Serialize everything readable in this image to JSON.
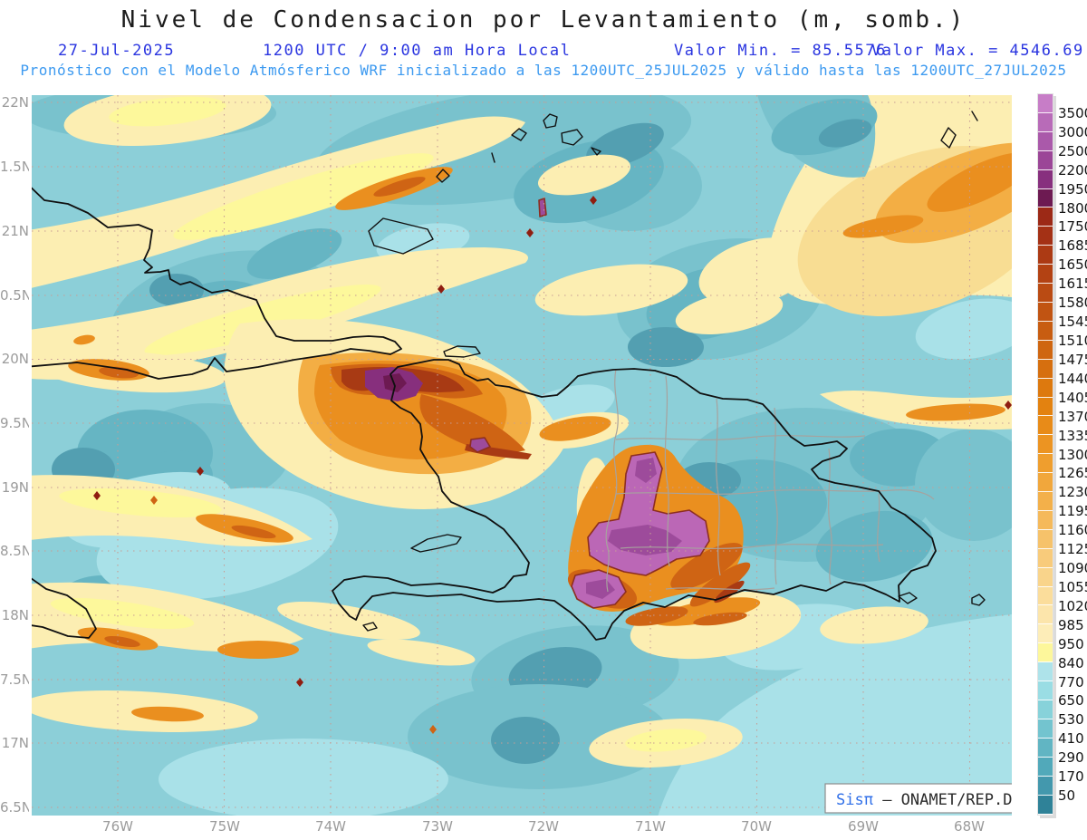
{
  "header": {
    "title": "Nivel de Condensacion por Levantamiento (m, somb.)",
    "date": "27-Jul-2025",
    "time": "1200 UTC / 9:00 am Hora Local",
    "valor_min": "Valor Min. = 85.5576",
    "valor_max": "Valor Max. = 4546.69",
    "forecast": "Pronóstico con el Modelo Atmósferico WRF inicializado a las 1200UTC_25JUL2025 y válido hasta las  1200UTC_27JUL2025"
  },
  "axes": {
    "lat_labels": [
      "22N",
      "1.5N",
      "21N",
      "0.5N",
      "20N",
      "9.5N",
      "19N",
      "8.5N",
      "18N",
      "7.5N",
      "17N",
      "6.5N"
    ],
    "lon_labels": [
      "76W",
      "75W",
      "74W",
      "73W",
      "72W",
      "71W",
      "70W",
      "69W",
      "68W"
    ]
  },
  "colorbar": {
    "tick_labels": [
      "3500",
      "3000",
      "2500",
      "2200",
      "1950",
      "1800",
      "1750",
      "1685",
      "1650",
      "1615",
      "1580",
      "1545",
      "1510",
      "1475",
      "1440",
      "1405",
      "1370",
      "1335",
      "1300",
      "1265",
      "1230",
      "1195",
      "1160",
      "1125",
      "1090",
      "1055",
      "1020",
      "985",
      "950",
      "840",
      "770",
      "650",
      "530",
      "410",
      "290",
      "170",
      "50"
    ],
    "segment_colors_top_to_bottom": [
      "#c77dc7",
      "#b86bb8",
      "#aa59aa",
      "#9b4697",
      "#87307e",
      "#6d1a52",
      "#9c2916",
      "#a43115",
      "#ac3a14",
      "#b34213",
      "#ba4b13",
      "#c15412",
      "#c85d11",
      "#cf6610",
      "#d66f0f",
      "#dd790e",
      "#e38210",
      "#e88b18",
      "#ec9422",
      "#ef9e2e",
      "#f1a73c",
      "#f3b04a",
      "#f5b95a",
      "#f6c26a",
      "#f8cb7b",
      "#f9d48b",
      "#fbdd9b",
      "#fce5ab",
      "#fdedb8",
      "#fdf79b",
      "#aee3ea",
      "#9adde4",
      "#87d2da",
      "#73c4cf",
      "#61b5c3",
      "#51a9ba",
      "#4398ad",
      "#2f8298"
    ]
  },
  "watermark": {
    "brand": "Sisπ",
    "org": " – ONAMET/REP.DOM."
  },
  "colors": {
    "header_blue": "#2a35e0",
    "forecast_blue": "#3d9af0",
    "axis_gray": "#9b9b9b"
  }
}
